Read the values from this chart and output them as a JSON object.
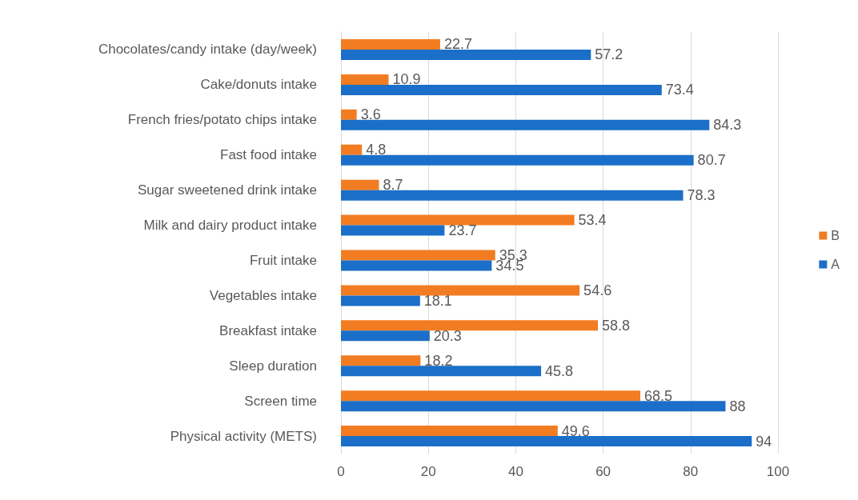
{
  "chart_data": {
    "type": "bar",
    "orientation": "horizontal",
    "categories": [
      "Chocolates/candy intake (day/week)",
      "Cake/donuts intake",
      "French fries/potato chips intake",
      "Fast food intake",
      "Sugar sweetened drink intake",
      "Milk and dairy product intake",
      "Fruit intake",
      "Vegetables intake",
      "Breakfast intake",
      "Sleep duration",
      "Screen time",
      "Physical activity (METS)"
    ],
    "series": [
      {
        "name": "B",
        "color": "#f27c22",
        "values": [
          22.7,
          10.9,
          3.6,
          4.8,
          8.7,
          53.4,
          35.3,
          54.6,
          58.8,
          18.2,
          68.5,
          49.6
        ]
      },
      {
        "name": "A",
        "color": "#1b6fc8",
        "values": [
          57.2,
          73.4,
          84.3,
          80.7,
          78.3,
          23.7,
          34.5,
          18.1,
          20.3,
          45.8,
          88,
          94
        ]
      }
    ],
    "xlim": [
      0,
      100
    ],
    "xticks": [
      0,
      20,
      40,
      60,
      80,
      100
    ],
    "grid": "x",
    "legend": "right",
    "data_labels": true
  }
}
